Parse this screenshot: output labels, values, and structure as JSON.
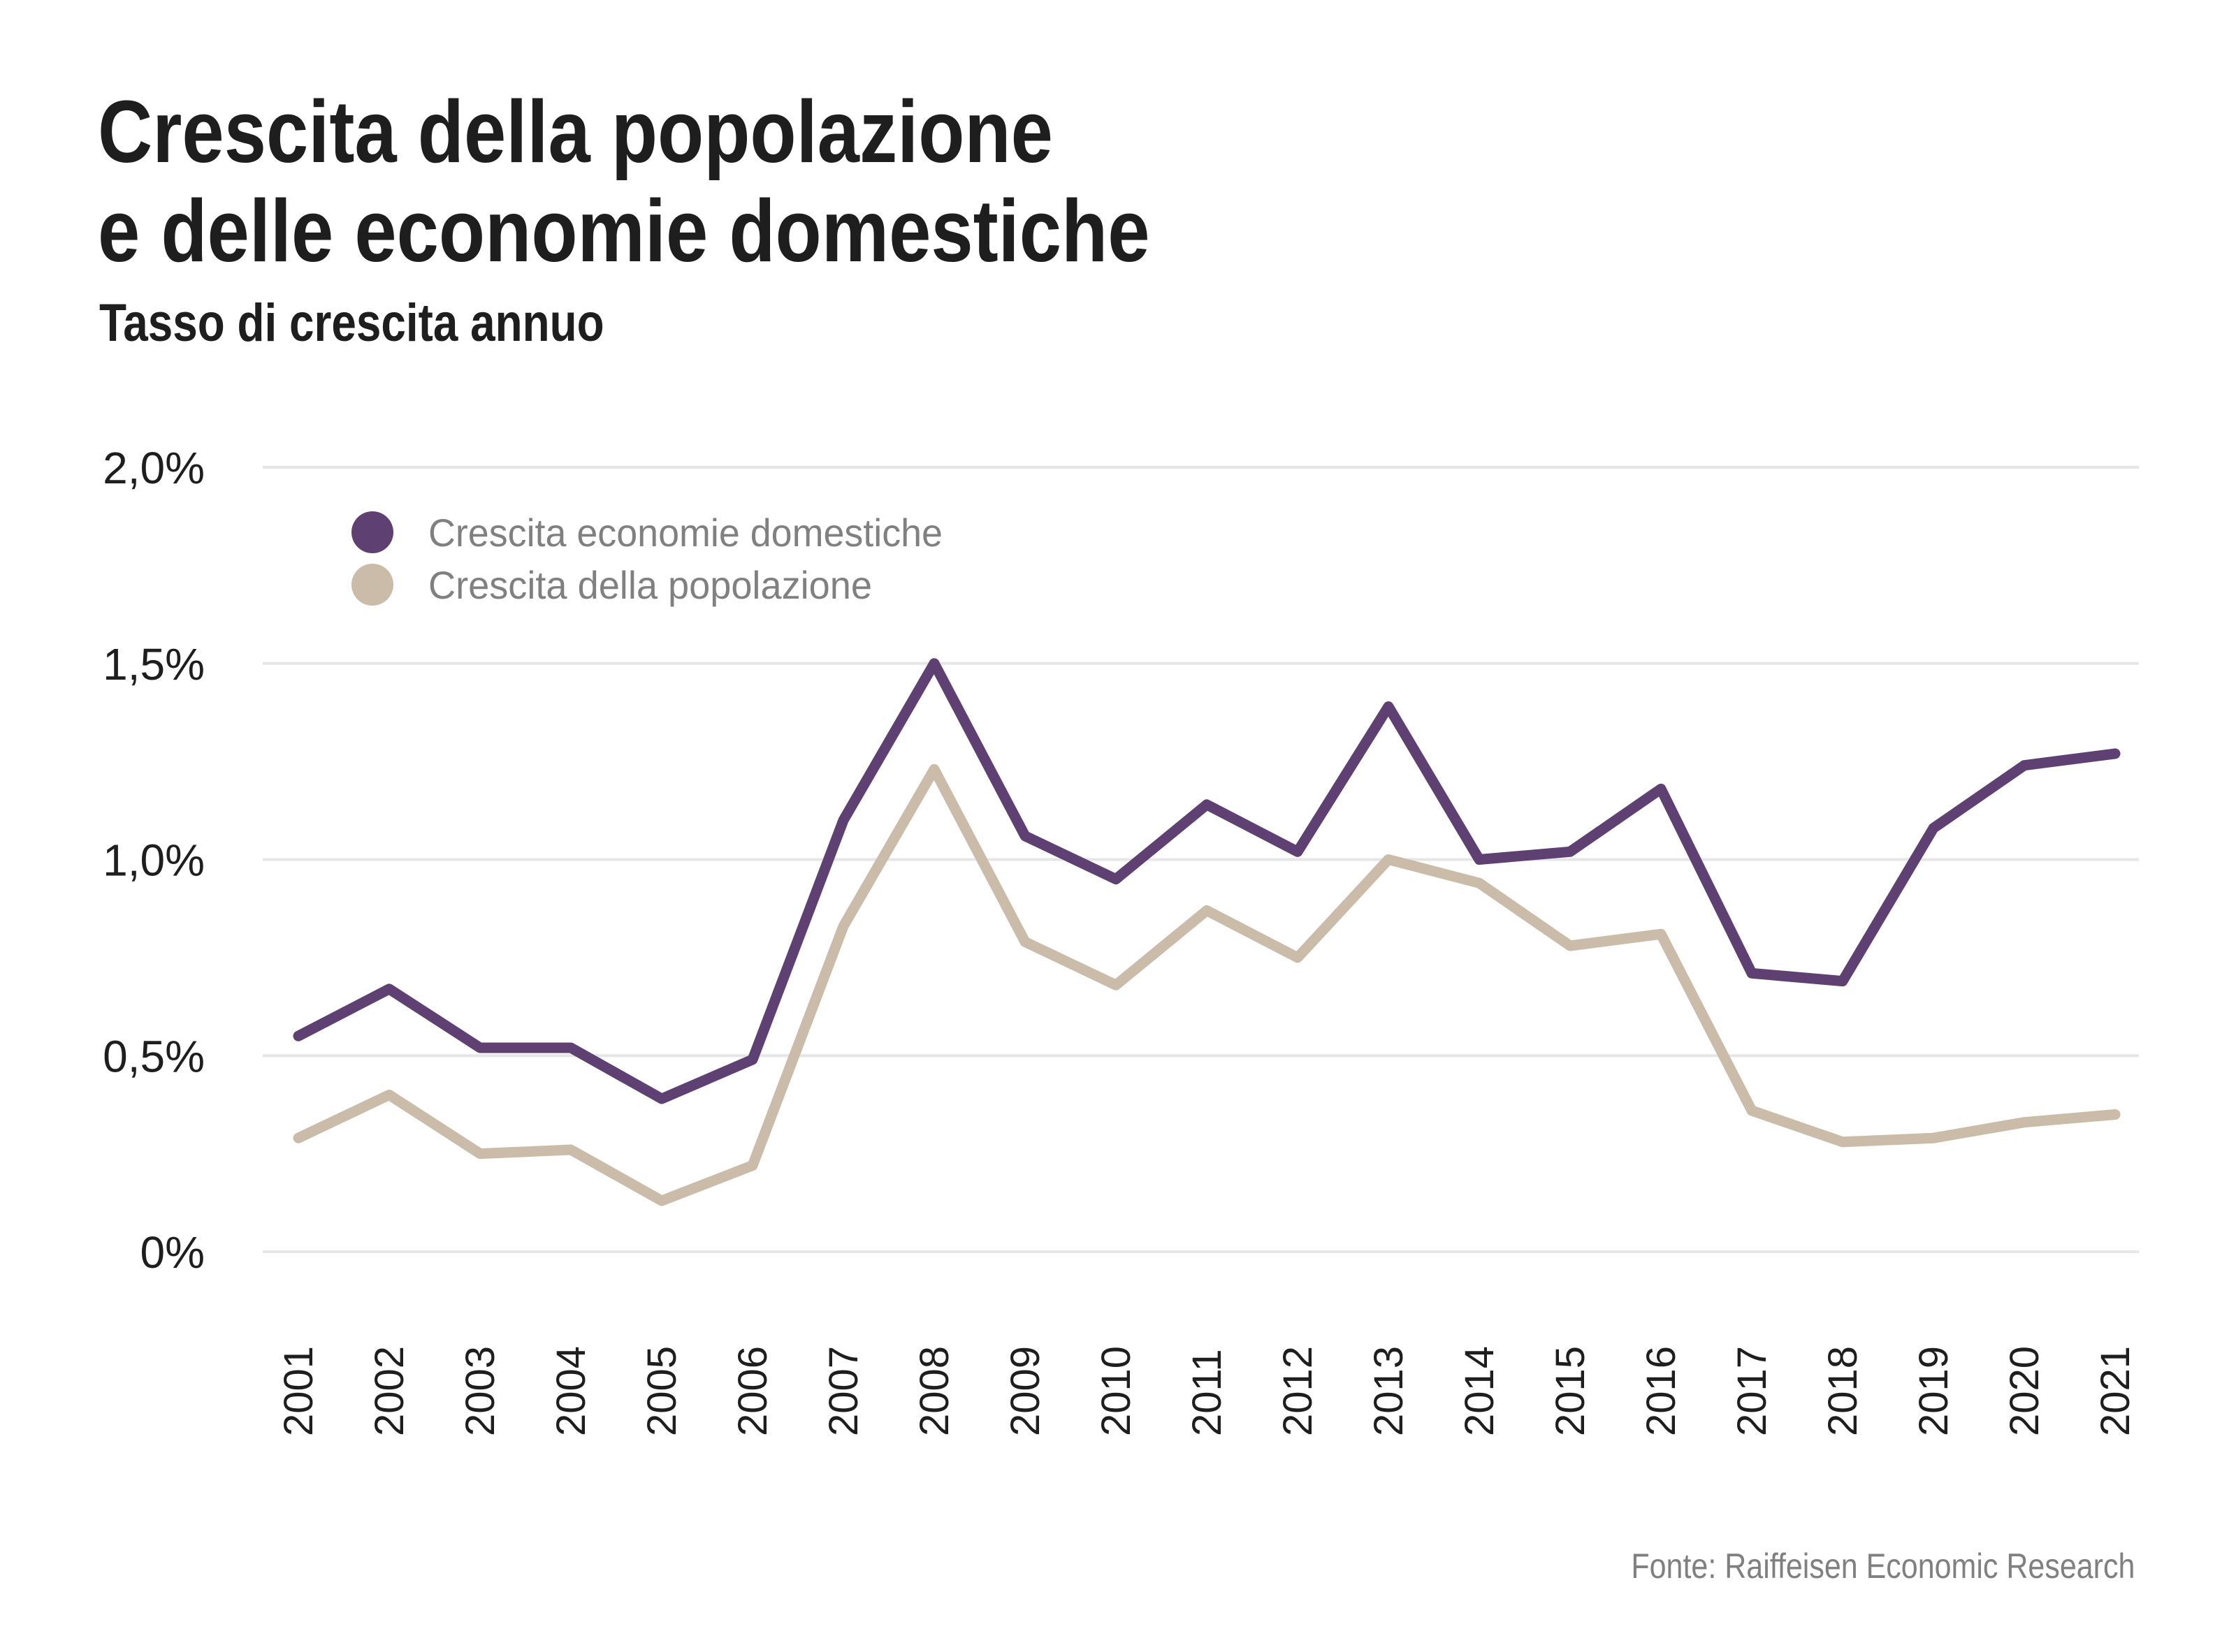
{
  "header": {
    "title_line1": "Crescita della popolazione",
    "title_line2": "e delle economie domestiche",
    "subtitle": "Tasso di crescita annuo"
  },
  "footer": {
    "source": "Fonte: Raiffeisen Economic Research"
  },
  "chart_data": {
    "type": "line",
    "title": "Crescita della popolazione e delle economie domestiche",
    "subtitle": "Tasso di crescita annuo",
    "xlabel": "",
    "ylabel": "",
    "x": [
      "2001",
      "2002",
      "2003",
      "2004",
      "2005",
      "2006",
      "2007",
      "2008",
      "2009",
      "2010",
      "2011",
      "2012",
      "2013",
      "2014",
      "2015",
      "2016",
      "2017",
      "2018",
      "2019",
      "2020",
      "2021"
    ],
    "ylim": [
      0,
      2.0
    ],
    "yticks": [
      0,
      0.5,
      1.0,
      1.5,
      2.0
    ],
    "ytick_labels": [
      "0%",
      "0,5%",
      "1,0%",
      "1,5%",
      "2,0%"
    ],
    "grid": "horizontal",
    "legend_position": "top-left",
    "unit": "%",
    "series": [
      {
        "name": "Crescita economie domestiche",
        "color": "#5f4073",
        "values": [
          0.55,
          0.67,
          0.52,
          0.52,
          0.39,
          0.49,
          1.1,
          1.5,
          1.06,
          0.95,
          1.14,
          1.02,
          1.39,
          1.0,
          1.02,
          1.18,
          0.71,
          0.69,
          1.08,
          1.24,
          1.27
        ]
      },
      {
        "name": "Crescita della popolazione",
        "color": "#cbbba9",
        "values": [
          0.29,
          0.4,
          0.25,
          0.26,
          0.13,
          0.22,
          0.83,
          1.23,
          0.79,
          0.68,
          0.87,
          0.75,
          1.0,
          0.94,
          0.78,
          0.81,
          0.36,
          0.28,
          0.29,
          0.33,
          0.35
        ]
      }
    ]
  }
}
